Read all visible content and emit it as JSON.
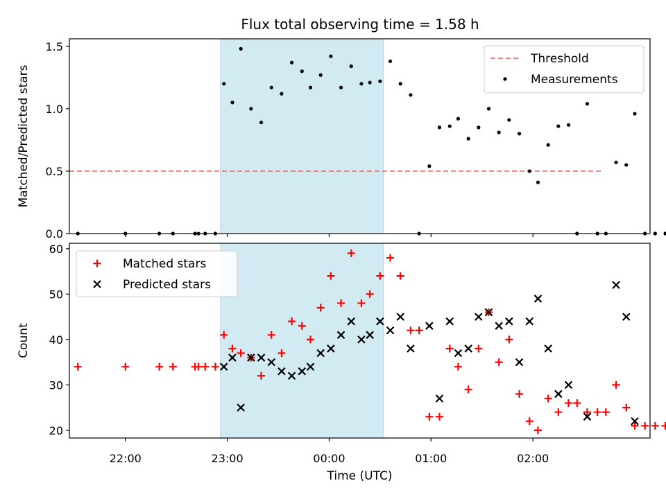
{
  "figure_title": "Flux total observing time = 1.58 h",
  "colors": {
    "threshold": "#f08080",
    "shade": "#add8e6",
    "matched": "#ff0000",
    "predicted": "#000000"
  },
  "chart_data": [
    {
      "type": "scatter",
      "title": "Flux total observing time = 1.58 h",
      "xlabel": "",
      "ylabel": "Matched/Predicted stars",
      "xlim": [
        "21:27",
        "03:09"
      ],
      "ylim": [
        0,
        1.56
      ],
      "yticks": [
        "0.0",
        "0.5",
        "1.0",
        "1.5"
      ],
      "shaded_span": [
        "22:56",
        "00:32"
      ],
      "legend": {
        "position": "top-right",
        "entries": [
          {
            "label": "Threshold",
            "style": "dashed-line"
          },
          {
            "label": "Measurements",
            "style": "dot"
          }
        ]
      },
      "threshold": {
        "name": "Threshold",
        "y": 0.5,
        "x": [
          "21:27",
          "02:41"
        ]
      },
      "series": [
        {
          "name": "Measurements",
          "points": [
            [
              "21:32",
              0
            ],
            [
              "22:00",
              0
            ],
            [
              "22:20",
              0
            ],
            [
              "22:28",
              0
            ],
            [
              "22:41",
              0
            ],
            [
              "22:43",
              0
            ],
            [
              "22:47",
              0
            ],
            [
              "22:53",
              0
            ],
            [
              "22:58",
              1.2
            ],
            [
              "23:03",
              1.05
            ],
            [
              "23:08",
              1.48
            ],
            [
              "23:14",
              1.0
            ],
            [
              "23:20",
              0.89
            ],
            [
              "23:26",
              1.17
            ],
            [
              "23:32",
              1.12
            ],
            [
              "23:38",
              1.37
            ],
            [
              "23:44",
              1.3
            ],
            [
              "23:49",
              1.17
            ],
            [
              "23:55",
              1.27
            ],
            [
              "00:01",
              1.42
            ],
            [
              "00:07",
              1.17
            ],
            [
              "00:13",
              1.34
            ],
            [
              "00:19",
              1.2
            ],
            [
              "00:24",
              1.21
            ],
            [
              "00:30",
              1.22
            ],
            [
              "00:36",
              1.38
            ],
            [
              "00:42",
              1.2
            ],
            [
              "00:48",
              1.11
            ],
            [
              "00:53",
              0
            ],
            [
              "00:59",
              0.54
            ],
            [
              "01:05",
              0.85
            ],
            [
              "01:11",
              0.86
            ],
            [
              "01:16",
              0.92
            ],
            [
              "01:22",
              0.76
            ],
            [
              "01:28",
              0.85
            ],
            [
              "01:34",
              1.0
            ],
            [
              "01:40",
              0.81
            ],
            [
              "01:46",
              0.91
            ],
            [
              "01:52",
              0.8
            ],
            [
              "01:58",
              0.5
            ],
            [
              "02:03",
              0.41
            ],
            [
              "02:09",
              0.71
            ],
            [
              "02:15",
              0.86
            ],
            [
              "02:21",
              0.87
            ],
            [
              "02:26",
              0
            ],
            [
              "02:32",
              1.04
            ],
            [
              "02:38",
              0
            ],
            [
              "02:43",
              0
            ],
            [
              "02:49",
              0.57
            ],
            [
              "02:55",
              0.55
            ],
            [
              "03:00",
              0.96
            ],
            [
              "03:06",
              0
            ],
            [
              "03:12",
              0
            ],
            [
              "03:18",
              0
            ]
          ]
        }
      ]
    },
    {
      "type": "scatter",
      "title": "",
      "xlabel": "Time (UTC)",
      "ylabel": "Count",
      "xlim": [
        "21:27",
        "03:09"
      ],
      "ylim": [
        18.3,
        61.2
      ],
      "yticks": [
        "20",
        "30",
        "40",
        "50",
        "60"
      ],
      "xticks": [
        "22:00",
        "23:00",
        "00:00",
        "01:00",
        "02:00"
      ],
      "shaded_span": [
        "22:56",
        "00:32"
      ],
      "legend": {
        "position": "top-left",
        "entries": [
          {
            "label": "Matched stars",
            "style": "plus"
          },
          {
            "label": "Predicted stars",
            "style": "x"
          }
        ]
      },
      "series": [
        {
          "name": "Matched stars",
          "points": [
            [
              "21:32",
              34
            ],
            [
              "22:00",
              34
            ],
            [
              "22:20",
              34
            ],
            [
              "22:28",
              34
            ],
            [
              "22:41",
              34
            ],
            [
              "22:43",
              34
            ],
            [
              "22:47",
              34
            ],
            [
              "22:53",
              34
            ],
            [
              "22:58",
              41
            ],
            [
              "23:03",
              38
            ],
            [
              "23:08",
              37
            ],
            [
              "23:14",
              36
            ],
            [
              "23:20",
              32
            ],
            [
              "23:26",
              41
            ],
            [
              "23:32",
              37
            ],
            [
              "23:38",
              44
            ],
            [
              "23:44",
              43
            ],
            [
              "23:49",
              40
            ],
            [
              "23:55",
              47
            ],
            [
              "00:01",
              54
            ],
            [
              "00:07",
              48
            ],
            [
              "00:13",
              59
            ],
            [
              "00:19",
              48
            ],
            [
              "00:24",
              50
            ],
            [
              "00:30",
              54
            ],
            [
              "00:36",
              58
            ],
            [
              "00:42",
              54
            ],
            [
              "00:48",
              42
            ],
            [
              "00:53",
              42
            ],
            [
              "00:59",
              23
            ],
            [
              "01:05",
              23
            ],
            [
              "01:11",
              38
            ],
            [
              "01:16",
              34
            ],
            [
              "01:22",
              29
            ],
            [
              "01:28",
              38
            ],
            [
              "01:34",
              46
            ],
            [
              "01:40",
              35
            ],
            [
              "01:46",
              40
            ],
            [
              "01:52",
              28
            ],
            [
              "01:58",
              22
            ],
            [
              "02:03",
              20
            ],
            [
              "02:09",
              27
            ],
            [
              "02:15",
              24
            ],
            [
              "02:21",
              26
            ],
            [
              "02:26",
              26
            ],
            [
              "02:32",
              24
            ],
            [
              "02:38",
              24
            ],
            [
              "02:43",
              24
            ],
            [
              "02:49",
              30
            ],
            [
              "02:55",
              25
            ],
            [
              "03:00",
              21
            ],
            [
              "03:06",
              21
            ],
            [
              "03:12",
              21
            ],
            [
              "03:18",
              21
            ]
          ]
        },
        {
          "name": "Predicted stars",
          "points": [
            [
              "22:58",
              34
            ],
            [
              "23:03",
              36
            ],
            [
              "23:08",
              25
            ],
            [
              "23:14",
              36
            ],
            [
              "23:20",
              36
            ],
            [
              "23:26",
              35
            ],
            [
              "23:32",
              33
            ],
            [
              "23:38",
              32
            ],
            [
              "23:44",
              33
            ],
            [
              "23:49",
              34
            ],
            [
              "23:55",
              37
            ],
            [
              "00:01",
              38
            ],
            [
              "00:07",
              41
            ],
            [
              "00:13",
              44
            ],
            [
              "00:19",
              40
            ],
            [
              "00:24",
              41
            ],
            [
              "00:30",
              44
            ],
            [
              "00:36",
              42
            ],
            [
              "00:42",
              45
            ],
            [
              "00:48",
              38
            ],
            [
              "00:59",
              43
            ],
            [
              "01:05",
              27
            ],
            [
              "01:11",
              44
            ],
            [
              "01:16",
              37
            ],
            [
              "01:22",
              38
            ],
            [
              "01:28",
              45
            ],
            [
              "01:34",
              46
            ],
            [
              "01:40",
              43
            ],
            [
              "01:46",
              44
            ],
            [
              "01:52",
              35
            ],
            [
              "01:58",
              44
            ],
            [
              "02:03",
              49
            ],
            [
              "02:09",
              38
            ],
            [
              "02:15",
              28
            ],
            [
              "02:21",
              30
            ],
            [
              "02:32",
              23
            ],
            [
              "02:49",
              52
            ],
            [
              "02:55",
              45
            ],
            [
              "03:00",
              22
            ]
          ]
        }
      ]
    }
  ]
}
